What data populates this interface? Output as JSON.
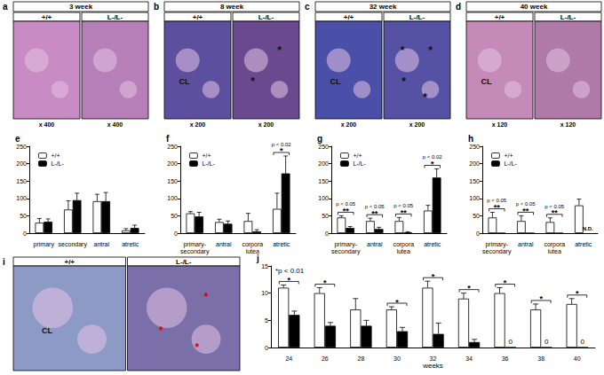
{
  "images": [
    {
      "panel": "a",
      "title": "3 week",
      "left_label": "+/+",
      "right_label": "L-/L-",
      "magnifications": [
        "x 400",
        "x 400"
      ],
      "left_marks": [],
      "right_marks": []
    },
    {
      "panel": "b",
      "title": "8 week",
      "left_label": "+/+",
      "right_label": "L-/L-",
      "magnifications": [
        "x 200",
        "x 200"
      ],
      "left_marks": [
        "CL"
      ],
      "right_marks": [
        "*",
        "*"
      ]
    },
    {
      "panel": "c",
      "title": "32 week",
      "left_label": "+/+",
      "right_label": "L-/L-",
      "magnifications": [
        "x 200",
        "x 200"
      ],
      "left_marks": [
        "CL"
      ],
      "right_marks": [
        "*",
        "*",
        "*",
        "*"
      ]
    },
    {
      "panel": "d",
      "title": "40 week",
      "left_label": "+/+",
      "right_label": "L-/L-",
      "magnifications": [
        "x 120",
        "x 120"
      ],
      "left_marks": [
        "CL"
      ],
      "right_marks": []
    },
    {
      "panel": "i",
      "left_label": "+/+",
      "right_label": "L-/L-",
      "left_marks": [
        "CL"
      ],
      "right_marks": [
        "*",
        "*",
        "*"
      ]
    }
  ],
  "chart_data": [
    {
      "panel": "e",
      "type": "bar",
      "categories": [
        "primary",
        "secondary",
        "antral",
        "atretic"
      ],
      "series": [
        {
          "name": "+/+",
          "color": "#ffffff",
          "values": [
            30,
            68,
            92,
            8
          ],
          "errors": [
            12,
            25,
            20,
            5
          ]
        },
        {
          "name": "L-/L-",
          "color": "#000000",
          "values": [
            33,
            95,
            92,
            15
          ],
          "errors": [
            8,
            20,
            25,
            8
          ]
        }
      ],
      "ylim": [
        0,
        250
      ],
      "yticks": [
        0,
        50,
        100,
        150,
        200,
        250
      ],
      "legend": "upper left",
      "annotations": []
    },
    {
      "panel": "f",
      "type": "bar",
      "categories": [
        "primary-secondary",
        "antral",
        "corpora lutea",
        "atretic"
      ],
      "series": [
        {
          "name": "+/+",
          "color": "#ffffff",
          "values": [
            57,
            32,
            35,
            70
          ],
          "errors": [
            5,
            8,
            22,
            45
          ]
        },
        {
          "name": "L-/L-",
          "color": "#000000",
          "values": [
            48,
            27,
            5,
            172
          ],
          "errors": [
            12,
            8,
            5,
            50
          ]
        }
      ],
      "ylim": [
        0,
        250
      ],
      "yticks": [
        0,
        50,
        100,
        150,
        200,
        250
      ],
      "legend": "upper left",
      "annotations": [
        {
          "category": "atretic",
          "label": "p < 0.02",
          "mark": "*"
        }
      ]
    },
    {
      "panel": "g",
      "type": "bar",
      "categories": [
        "primary-secondary",
        "antral",
        "corpora lutea",
        "atretic"
      ],
      "series": [
        {
          "name": "+/+",
          "color": "#ffffff",
          "values": [
            45,
            35,
            35,
            65
          ],
          "errors": [
            5,
            8,
            10,
            15
          ]
        },
        {
          "name": "L-/L-",
          "color": "#000000",
          "values": [
            15,
            12,
            2,
            160
          ],
          "errors": [
            4,
            5,
            2,
            25
          ]
        }
      ],
      "ylim": [
        0,
        250
      ],
      "yticks": [
        0,
        50,
        100,
        150,
        200,
        250
      ],
      "legend": "upper left",
      "annotations": [
        {
          "category": "primary-secondary",
          "label": "p < 0.05",
          "mark": "**"
        },
        {
          "category": "antral",
          "label": "p < 0.05",
          "mark": "**"
        },
        {
          "category": "corpora lutea",
          "label": "p < 0.05",
          "mark": "**"
        },
        {
          "category": "atretic",
          "label": "p < 0.02",
          "mark": "*"
        }
      ]
    },
    {
      "panel": "h",
      "type": "bar",
      "categories": [
        "primary-secondary",
        "antral",
        "corpora lutea",
        "atretic"
      ],
      "series": [
        {
          "name": "+/+",
          "color": "#ffffff",
          "values": [
            45,
            35,
            32,
            80
          ],
          "errors": [
            15,
            15,
            12,
            18
          ]
        },
        {
          "name": "L-/L-",
          "color": "#000000",
          "values": [
            0,
            0,
            0,
            null
          ],
          "errors": [
            0,
            0,
            0,
            null
          ]
        }
      ],
      "ylim": [
        0,
        250
      ],
      "yticks": [
        0,
        50,
        100,
        150,
        200,
        250
      ],
      "legend": "upper left",
      "annotations": [
        {
          "category": "primary-secondary",
          "label": "p < 0.05",
          "mark": "**"
        },
        {
          "category": "antral",
          "label": "p < 0.05",
          "mark": "**"
        },
        {
          "category": "corpora lutea",
          "label": "p < 0.05",
          "mark": "**"
        },
        {
          "category": "atretic",
          "label": "N.D."
        }
      ]
    },
    {
      "panel": "j",
      "type": "bar",
      "categories": [
        "24",
        "26",
        "28",
        "30",
        "32",
        "34",
        "36",
        "38",
        "40"
      ],
      "xlabel": "weeks",
      "note": "*p < 0.01",
      "series": [
        {
          "color": "#ffffff",
          "values": [
            11,
            10,
            7,
            7,
            11,
            9,
            10,
            7,
            8
          ],
          "errors": [
            0.5,
            1,
            2,
            0.5,
            1.2,
            1,
            1,
            1,
            1
          ]
        },
        {
          "color": "#000000",
          "values": [
            6,
            4,
            4,
            3,
            2.5,
            1,
            0,
            0,
            0
          ],
          "errors": [
            0.7,
            0.6,
            1,
            0.7,
            2,
            0.5,
            0,
            0,
            0
          ],
          "value_labels": [
            null,
            null,
            null,
            null,
            null,
            null,
            "0",
            "0",
            "0"
          ]
        }
      ],
      "ylim": [
        0,
        15
      ],
      "yticks": [
        0,
        5,
        10,
        15
      ],
      "annotations": [
        {
          "category": "24",
          "mark": "*"
        },
        {
          "category": "26",
          "mark": "*"
        },
        {
          "category": "30",
          "mark": "*"
        },
        {
          "category": "32",
          "mark": "*"
        },
        {
          "category": "34",
          "mark": "*"
        },
        {
          "category": "36",
          "mark": "*"
        },
        {
          "category": "38",
          "mark": "*"
        },
        {
          "category": "40",
          "mark": "*"
        }
      ]
    }
  ]
}
